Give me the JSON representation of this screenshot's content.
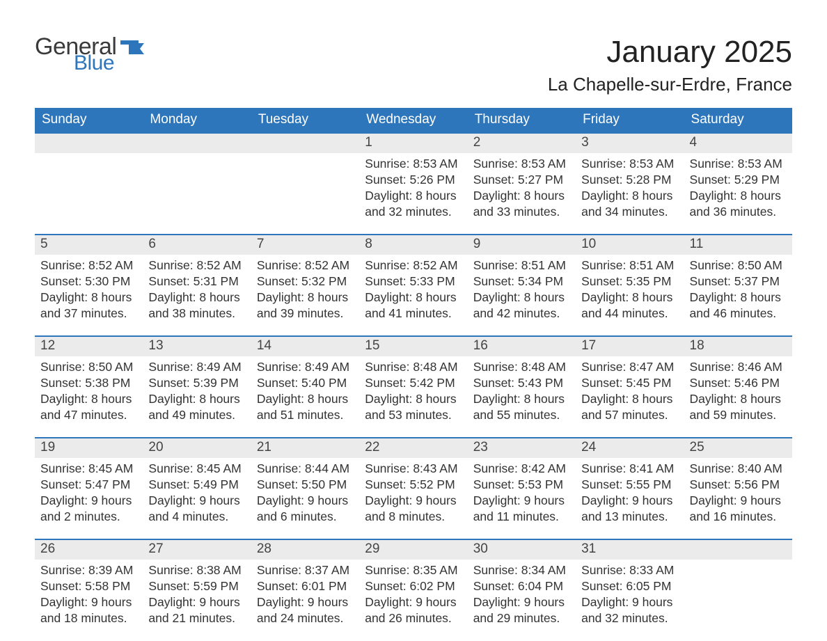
{
  "logo": {
    "word1": "General",
    "word2": "Blue"
  },
  "title": "January 2025",
  "location": "La Chapelle-sur-Erdre, France",
  "colors": {
    "header_blue": "#2d76bb",
    "accent_blue": "#2d76bb",
    "daynum_bg": "#ebebeb",
    "text": "#333333",
    "page_bg": "#ffffff",
    "logo_dark": "#3a3a3a"
  },
  "typography": {
    "title_fontsize_pt": 33,
    "location_fontsize_pt": 20,
    "weekday_fontsize_pt": 14,
    "body_fontsize_pt": 13,
    "font_family": "Segoe UI / Arial"
  },
  "calendar": {
    "type": "table",
    "columns": [
      "Sunday",
      "Monday",
      "Tuesday",
      "Wednesday",
      "Thursday",
      "Friday",
      "Saturday"
    ],
    "weeks": [
      [
        null,
        null,
        null,
        {
          "day": "1",
          "sunrise": "8:53 AM",
          "sunset": "5:26 PM",
          "daylight": "8 hours and 32 minutes."
        },
        {
          "day": "2",
          "sunrise": "8:53 AM",
          "sunset": "5:27 PM",
          "daylight": "8 hours and 33 minutes."
        },
        {
          "day": "3",
          "sunrise": "8:53 AM",
          "sunset": "5:28 PM",
          "daylight": "8 hours and 34 minutes."
        },
        {
          "day": "4",
          "sunrise": "8:53 AM",
          "sunset": "5:29 PM",
          "daylight": "8 hours and 36 minutes."
        }
      ],
      [
        {
          "day": "5",
          "sunrise": "8:52 AM",
          "sunset": "5:30 PM",
          "daylight": "8 hours and 37 minutes."
        },
        {
          "day": "6",
          "sunrise": "8:52 AM",
          "sunset": "5:31 PM",
          "daylight": "8 hours and 38 minutes."
        },
        {
          "day": "7",
          "sunrise": "8:52 AM",
          "sunset": "5:32 PM",
          "daylight": "8 hours and 39 minutes."
        },
        {
          "day": "8",
          "sunrise": "8:52 AM",
          "sunset": "5:33 PM",
          "daylight": "8 hours and 41 minutes."
        },
        {
          "day": "9",
          "sunrise": "8:51 AM",
          "sunset": "5:34 PM",
          "daylight": "8 hours and 42 minutes."
        },
        {
          "day": "10",
          "sunrise": "8:51 AM",
          "sunset": "5:35 PM",
          "daylight": "8 hours and 44 minutes."
        },
        {
          "day": "11",
          "sunrise": "8:50 AM",
          "sunset": "5:37 PM",
          "daylight": "8 hours and 46 minutes."
        }
      ],
      [
        {
          "day": "12",
          "sunrise": "8:50 AM",
          "sunset": "5:38 PM",
          "daylight": "8 hours and 47 minutes."
        },
        {
          "day": "13",
          "sunrise": "8:49 AM",
          "sunset": "5:39 PM",
          "daylight": "8 hours and 49 minutes."
        },
        {
          "day": "14",
          "sunrise": "8:49 AM",
          "sunset": "5:40 PM",
          "daylight": "8 hours and 51 minutes."
        },
        {
          "day": "15",
          "sunrise": "8:48 AM",
          "sunset": "5:42 PM",
          "daylight": "8 hours and 53 minutes."
        },
        {
          "day": "16",
          "sunrise": "8:48 AM",
          "sunset": "5:43 PM",
          "daylight": "8 hours and 55 minutes."
        },
        {
          "day": "17",
          "sunrise": "8:47 AM",
          "sunset": "5:45 PM",
          "daylight": "8 hours and 57 minutes."
        },
        {
          "day": "18",
          "sunrise": "8:46 AM",
          "sunset": "5:46 PM",
          "daylight": "8 hours and 59 minutes."
        }
      ],
      [
        {
          "day": "19",
          "sunrise": "8:45 AM",
          "sunset": "5:47 PM",
          "daylight": "9 hours and 2 minutes."
        },
        {
          "day": "20",
          "sunrise": "8:45 AM",
          "sunset": "5:49 PM",
          "daylight": "9 hours and 4 minutes."
        },
        {
          "day": "21",
          "sunrise": "8:44 AM",
          "sunset": "5:50 PM",
          "daylight": "9 hours and 6 minutes."
        },
        {
          "day": "22",
          "sunrise": "8:43 AM",
          "sunset": "5:52 PM",
          "daylight": "9 hours and 8 minutes."
        },
        {
          "day": "23",
          "sunrise": "8:42 AM",
          "sunset": "5:53 PM",
          "daylight": "9 hours and 11 minutes."
        },
        {
          "day": "24",
          "sunrise": "8:41 AM",
          "sunset": "5:55 PM",
          "daylight": "9 hours and 13 minutes."
        },
        {
          "day": "25",
          "sunrise": "8:40 AM",
          "sunset": "5:56 PM",
          "daylight": "9 hours and 16 minutes."
        }
      ],
      [
        {
          "day": "26",
          "sunrise": "8:39 AM",
          "sunset": "5:58 PM",
          "daylight": "9 hours and 18 minutes."
        },
        {
          "day": "27",
          "sunrise": "8:38 AM",
          "sunset": "5:59 PM",
          "daylight": "9 hours and 21 minutes."
        },
        {
          "day": "28",
          "sunrise": "8:37 AM",
          "sunset": "6:01 PM",
          "daylight": "9 hours and 24 minutes."
        },
        {
          "day": "29",
          "sunrise": "8:35 AM",
          "sunset": "6:02 PM",
          "daylight": "9 hours and 26 minutes."
        },
        {
          "day": "30",
          "sunrise": "8:34 AM",
          "sunset": "6:04 PM",
          "daylight": "9 hours and 29 minutes."
        },
        {
          "day": "31",
          "sunrise": "8:33 AM",
          "sunset": "6:05 PM",
          "daylight": "9 hours and 32 minutes."
        },
        null
      ]
    ],
    "labels": {
      "sunrise": "Sunrise: ",
      "sunset": "Sunset: ",
      "daylight": "Daylight: "
    }
  }
}
